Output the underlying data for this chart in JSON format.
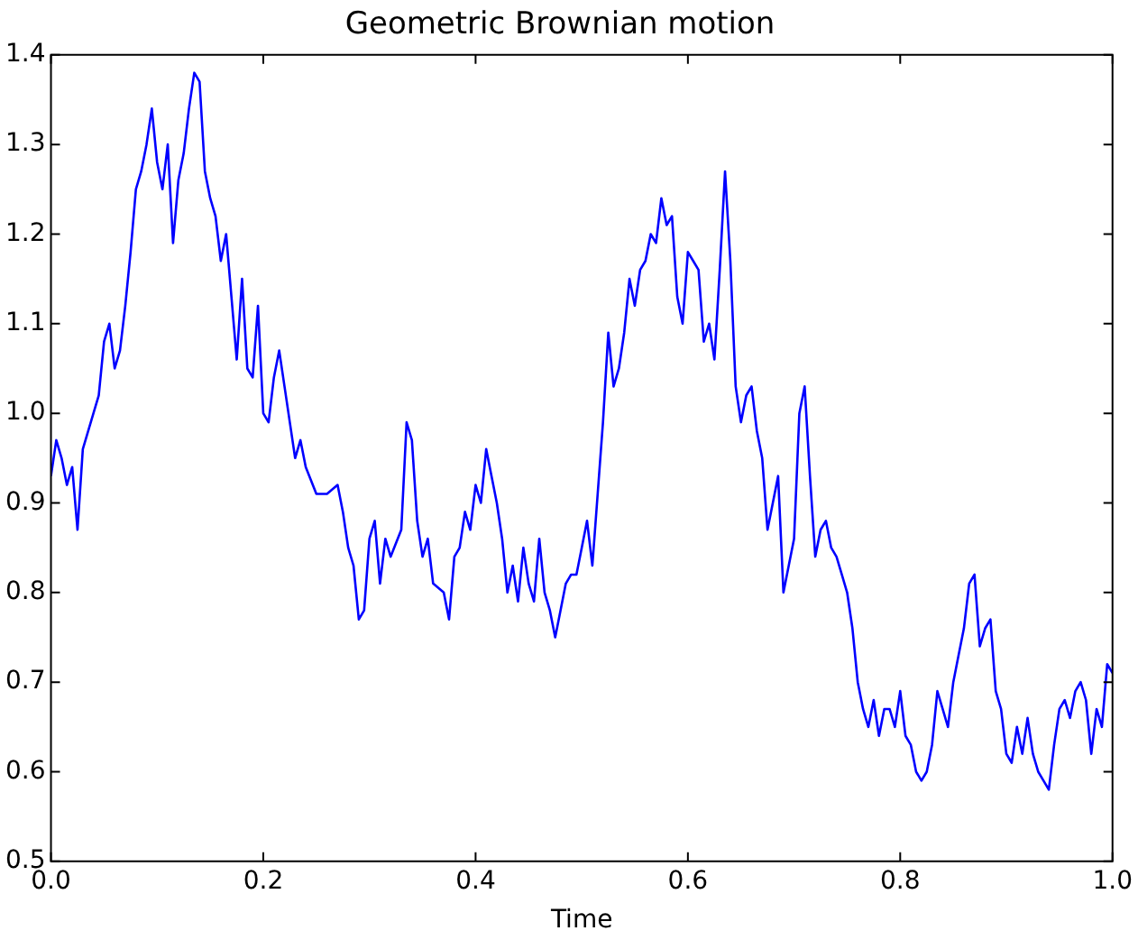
{
  "chart_data": {
    "type": "line",
    "title": "Geometric Brownian motion",
    "xlabel": "Time",
    "xlim": [
      0,
      1
    ],
    "xticks": [
      {
        "value": 0,
        "label": "0.0"
      },
      {
        "value": 0.2,
        "label": "0.2"
      },
      {
        "value": 0.4,
        "label": "0.4"
      },
      {
        "value": 0.6,
        "label": "0.6"
      },
      {
        "value": 0.8,
        "label": "0.8"
      },
      {
        "value": 1,
        "label": "1.0"
      }
    ],
    "ylim": [
      0.5,
      1.4
    ],
    "yticks": [
      {
        "value": 0.5,
        "label": "0.5"
      },
      {
        "value": 0.6,
        "label": "0.6"
      },
      {
        "value": 0.7,
        "label": "0.7"
      },
      {
        "value": 0.8,
        "label": "0.8"
      },
      {
        "value": 0.9,
        "label": "0.9"
      },
      {
        "value": 1,
        "label": "1.0"
      },
      {
        "value": 1.1,
        "label": "1.1"
      },
      {
        "value": 1.2,
        "label": "1.2"
      },
      {
        "value": 1.3,
        "label": "1.3"
      },
      {
        "value": 1.4,
        "label": "1.4"
      }
    ],
    "marker": "none",
    "line_style": "solid",
    "x": [
      0,
      0.005,
      0.01,
      0.015,
      0.02,
      0.025,
      0.03,
      0.04,
      0.045,
      0.05,
      0.055,
      0.06,
      0.065,
      0.07,
      0.075,
      0.08,
      0.085,
      0.09,
      0.095,
      0.1,
      0.105,
      0.11,
      0.115,
      0.12,
      0.125,
      0.13,
      0.135,
      0.14,
      0.145,
      0.15,
      0.155,
      0.16,
      0.165,
      0.17,
      0.175,
      0.18,
      0.185,
      0.19,
      0.195,
      0.2,
      0.205,
      0.21,
      0.215,
      0.22,
      0.225,
      0.23,
      0.235,
      0.24,
      0.25,
      0.26,
      0.27,
      0.275,
      0.28,
      0.285,
      0.29,
      0.295,
      0.3,
      0.305,
      0.31,
      0.315,
      0.32,
      0.33,
      0.335,
      0.34,
      0.345,
      0.35,
      0.355,
      0.36,
      0.37,
      0.375,
      0.38,
      0.385,
      0.39,
      0.395,
      0.4,
      0.405,
      0.41,
      0.415,
      0.42,
      0.425,
      0.43,
      0.435,
      0.44,
      0.445,
      0.45,
      0.455,
      0.46,
      0.465,
      0.47,
      0.475,
      0.48,
      0.485,
      0.49,
      0.495,
      0.5,
      0.505,
      0.51,
      0.515,
      0.52,
      0.525,
      0.53,
      0.535,
      0.54,
      0.545,
      0.55,
      0.555,
      0.56,
      0.565,
      0.57,
      0.575,
      0.58,
      0.585,
      0.59,
      0.595,
      0.6,
      0.605,
      0.61,
      0.615,
      0.62,
      0.625,
      0.63,
      0.635,
      0.64,
      0.645,
      0.65,
      0.655,
      0.66,
      0.665,
      0.67,
      0.675,
      0.68,
      0.685,
      0.69,
      0.695,
      0.7,
      0.705,
      0.71,
      0.715,
      0.72,
      0.725,
      0.73,
      0.735,
      0.74,
      0.745,
      0.75,
      0.755,
      0.76,
      0.765,
      0.77,
      0.775,
      0.78,
      0.785,
      0.79,
      0.795,
      0.8,
      0.805,
      0.81,
      0.815,
      0.82,
      0.825,
      0.83,
      0.835,
      0.84,
      0.845,
      0.85,
      0.855,
      0.86,
      0.865,
      0.87,
      0.875,
      0.88,
      0.885,
      0.89,
      0.895,
      0.9,
      0.905,
      0.91,
      0.915,
      0.92,
      0.925,
      0.93,
      0.935,
      0.94,
      0.945,
      0.95,
      0.955,
      0.96,
      0.965,
      0.97,
      0.975,
      0.98,
      0.985,
      0.99,
      0.995,
      1
    ],
    "series": [
      {
        "color": "#0000ff",
        "values": [
          0.93,
          0.97,
          0.95,
          0.92,
          0.94,
          0.87,
          0.96,
          1.0,
          1.02,
          1.08,
          1.1,
          1.05,
          1.07,
          1.12,
          1.18,
          1.25,
          1.27,
          1.3,
          1.34,
          1.28,
          1.25,
          1.3,
          1.19,
          1.26,
          1.29,
          1.34,
          1.38,
          1.37,
          1.27,
          1.24,
          1.22,
          1.17,
          1.2,
          1.13,
          1.06,
          1.15,
          1.05,
          1.04,
          1.12,
          1.0,
          0.99,
          1.04,
          1.07,
          1.03,
          0.99,
          0.95,
          0.97,
          0.94,
          0.91,
          0.91,
          0.92,
          0.89,
          0.85,
          0.83,
          0.77,
          0.78,
          0.86,
          0.88,
          0.81,
          0.86,
          0.84,
          0.87,
          0.99,
          0.97,
          0.88,
          0.84,
          0.86,
          0.81,
          0.8,
          0.77,
          0.84,
          0.85,
          0.89,
          0.87,
          0.92,
          0.9,
          0.96,
          0.93,
          0.9,
          0.86,
          0.8,
          0.83,
          0.79,
          0.85,
          0.81,
          0.79,
          0.86,
          0.8,
          0.78,
          0.75,
          0.78,
          0.81,
          0.82,
          0.82,
          0.85,
          0.88,
          0.83,
          0.91,
          0.99,
          1.09,
          1.03,
          1.05,
          1.09,
          1.15,
          1.12,
          1.16,
          1.17,
          1.2,
          1.19,
          1.24,
          1.21,
          1.22,
          1.13,
          1.1,
          1.18,
          1.17,
          1.16,
          1.08,
          1.1,
          1.06,
          1.16,
          1.27,
          1.17,
          1.03,
          0.99,
          1.02,
          1.03,
          0.98,
          0.95,
          0.87,
          0.9,
          0.93,
          0.8,
          0.83,
          0.86,
          1.0,
          1.03,
          0.93,
          0.84,
          0.87,
          0.88,
          0.85,
          0.84,
          0.82,
          0.8,
          0.76,
          0.7,
          0.67,
          0.65,
          0.68,
          0.64,
          0.67,
          0.67,
          0.65,
          0.69,
          0.64,
          0.63,
          0.6,
          0.59,
          0.6,
          0.63,
          0.69,
          0.67,
          0.65,
          0.7,
          0.73,
          0.76,
          0.81,
          0.82,
          0.74,
          0.76,
          0.77,
          0.69,
          0.67,
          0.62,
          0.61,
          0.65,
          0.62,
          0.66,
          0.62,
          0.6,
          0.59,
          0.58,
          0.63,
          0.67,
          0.68,
          0.66,
          0.69,
          0.7,
          0.68,
          0.62,
          0.67,
          0.65,
          0.72,
          0.71
        ]
      }
    ]
  }
}
